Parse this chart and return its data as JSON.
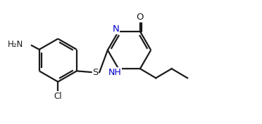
{
  "background_color": "#ffffff",
  "line_color": "#1a1a1a",
  "N_color": "#0000cd",
  "bond_width": 1.6,
  "figsize": [
    3.72,
    1.77
  ],
  "dpi": 100,
  "xlim": [
    -0.55,
    3.35
  ],
  "ylim": [
    -1.05,
    1.05
  ]
}
